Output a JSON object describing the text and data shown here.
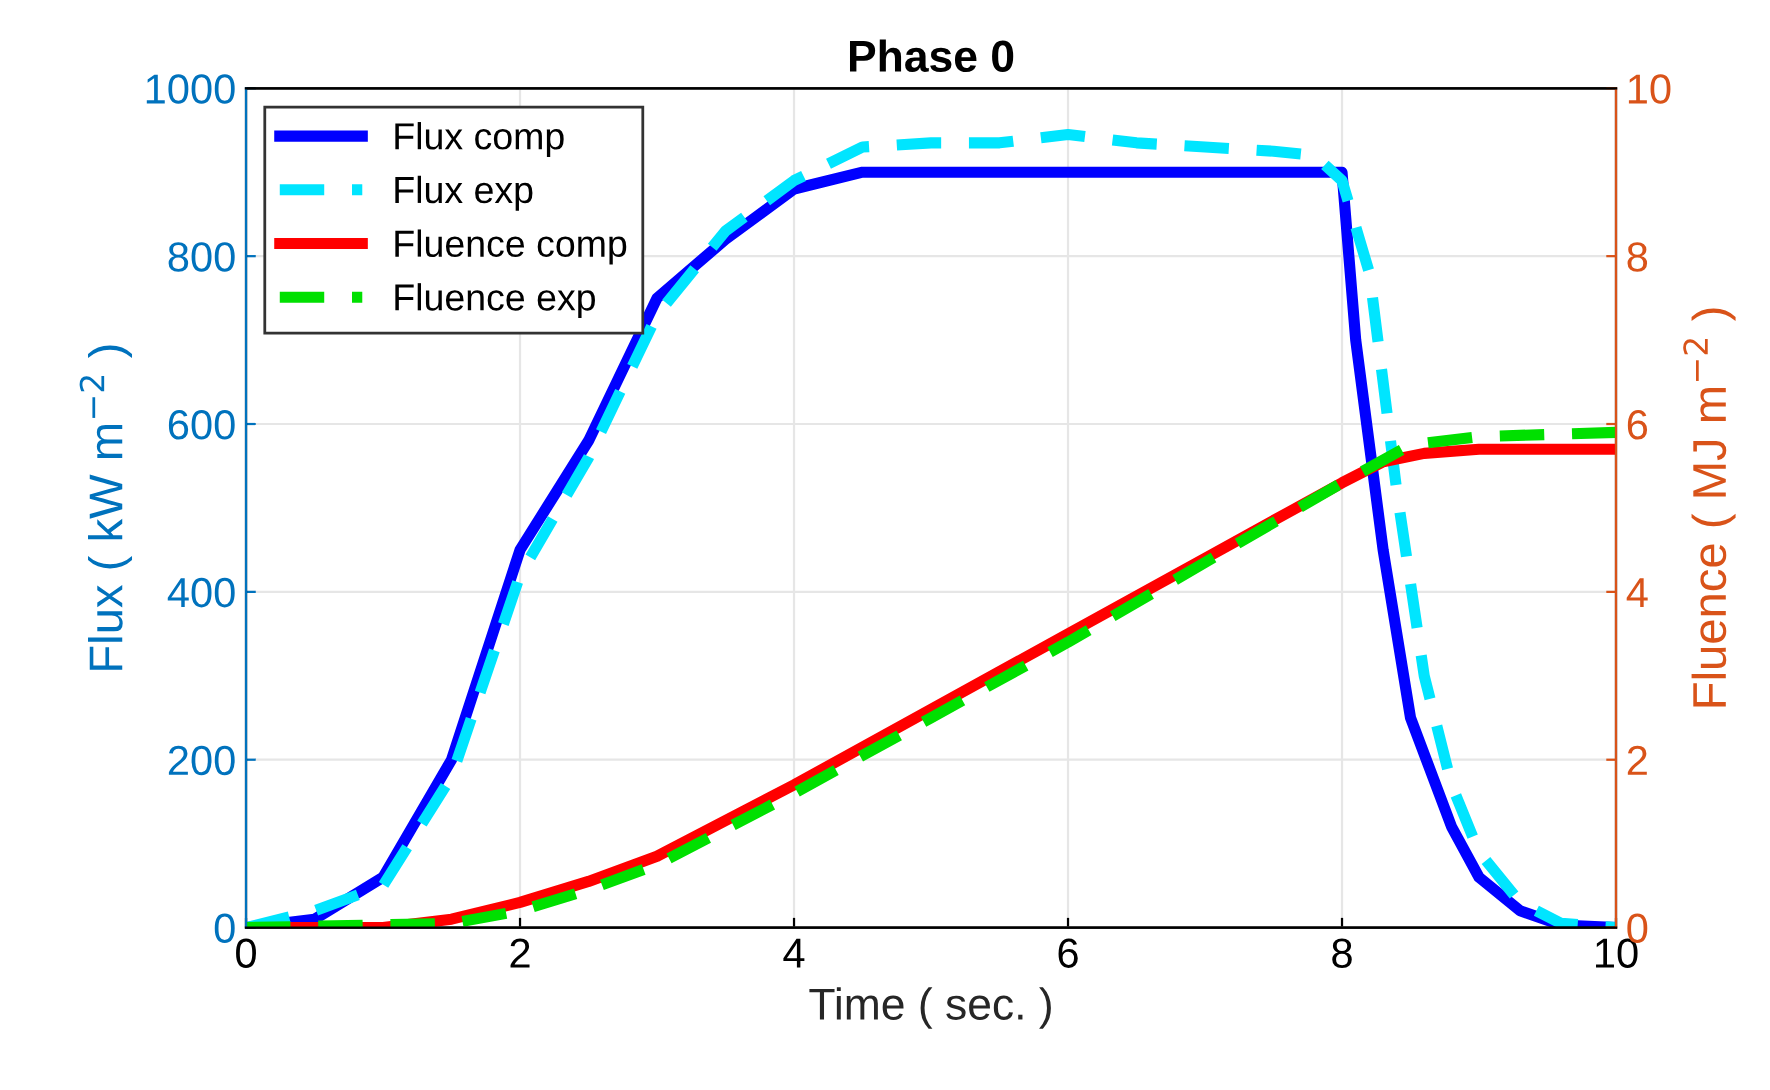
{
  "chart_data": {
    "type": "line",
    "title": "Phase 0",
    "xlabel": "Time ( sec. )",
    "ylabel": "Flux ( kW m$^{−2}$ )",
    "y2label": "Fluence ( MJ m$^{−2}$ )",
    "xlim": [
      0,
      10
    ],
    "xticks": [
      0,
      2,
      4,
      6,
      8,
      10
    ],
    "ylim": [
      0,
      1000
    ],
    "yticks": [
      0,
      200,
      400,
      600,
      800,
      1000
    ],
    "y2lim": [
      0,
      10
    ],
    "y2ticks": [
      0,
      2,
      4,
      6,
      8,
      10
    ],
    "grid": true,
    "legend": "top left",
    "series": [
      {
        "name": "Flux comp",
        "color": "#0000ff",
        "line_style": "solid",
        "x": [
          0,
          0.5,
          1,
          1.5,
          2,
          2.5,
          3,
          3.5,
          4,
          4.5,
          8,
          8.1,
          8.3,
          8.5,
          8.8,
          9,
          9.3,
          9.6,
          10
        ],
        "values": [
          0,
          10,
          60,
          200,
          450,
          580,
          750,
          820,
          880,
          900,
          900,
          700,
          450,
          250,
          120,
          60,
          20,
          3,
          0
        ]
      },
      {
        "name": "Flux exp",
        "color": "#00e5ff",
        "line_style": "dashed",
        "x": [
          0,
          0.5,
          1,
          1.5,
          2,
          2.5,
          3,
          3.5,
          4,
          4.5,
          5,
          5.5,
          6,
          6.5,
          7,
          7.5,
          7.8,
          8,
          8.2,
          8.4,
          8.6,
          8.8,
          9,
          9.3,
          9.6,
          10
        ],
        "values": [
          0,
          20,
          50,
          180,
          420,
          560,
          730,
          830,
          890,
          930,
          935,
          935,
          945,
          935,
          930,
          925,
          920,
          890,
          780,
          520,
          300,
          170,
          90,
          30,
          5,
          0
        ]
      },
      {
        "name": "Fluence comp",
        "color": "#ff0000",
        "line_style": "solid",
        "axis": "y2",
        "x": [
          0,
          1,
          1.5,
          2,
          2.5,
          3,
          4,
          5,
          6,
          7,
          8,
          8.3,
          8.6,
          9,
          10
        ],
        "values": [
          0,
          0,
          0.1,
          0.3,
          0.55,
          0.85,
          1.7,
          2.6,
          3.5,
          4.4,
          5.3,
          5.55,
          5.65,
          5.7,
          5.7
        ]
      },
      {
        "name": "Fluence exp",
        "color": "#00e000",
        "line_style": "dashed",
        "axis": "y2",
        "x": [
          0,
          1.5,
          2,
          2.5,
          3,
          4,
          5,
          6,
          7,
          8,
          8.5,
          9,
          10
        ],
        "values": [
          0,
          0.05,
          0.2,
          0.45,
          0.75,
          1.6,
          2.5,
          3.4,
          4.35,
          5.3,
          5.75,
          5.85,
          5.9
        ]
      }
    ]
  }
}
